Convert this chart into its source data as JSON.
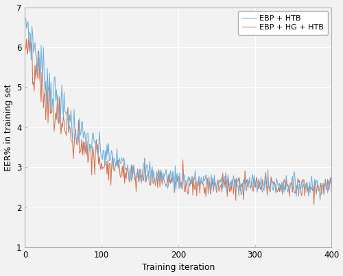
{
  "title": "",
  "xlabel": "Training iteration",
  "ylabel": "EER% in training set",
  "xlim": [
    0,
    400
  ],
  "ylim": [
    1,
    7
  ],
  "yticks": [
    1,
    2,
    3,
    4,
    5,
    6,
    7
  ],
  "xticks": [
    0,
    100,
    200,
    300,
    400
  ],
  "line1_label": "EBP + HTB",
  "line2_label": "EBP + HG + HTB",
  "line1_color": "#6ab0de",
  "line2_color": "#d4714e",
  "background_color": "#f2f2f2",
  "plot_bg_color": "#f2f2f2",
  "grid_color": "#ffffff",
  "spine_color": "#b0b0b0",
  "n_points": 400,
  "seed1": 7,
  "seed2": 13,
  "start_val1": 6.7,
  "end_val1": 2.55,
  "start_val2": 5.95,
  "end_val2": 2.5,
  "decay_rate": 6.5,
  "noise_start1": 0.22,
  "noise_end1": 0.12,
  "noise_start2": 0.28,
  "noise_end2": 0.13
}
